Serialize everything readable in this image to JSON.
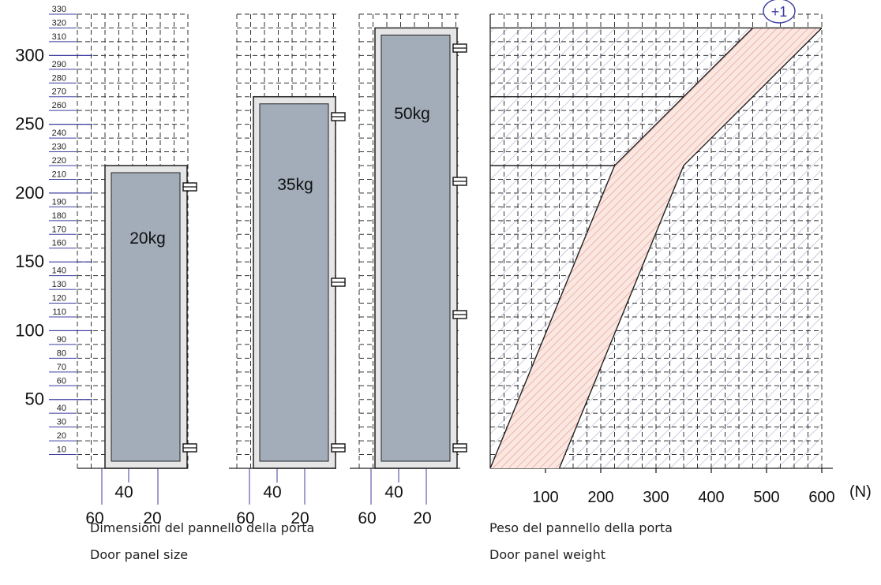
{
  "height_axis": {
    "minor_labels": [
      "10",
      "20",
      "30",
      "40",
      "60",
      "70",
      "80",
      "90",
      "110",
      "120",
      "130",
      "140",
      "160",
      "170",
      "180",
      "190",
      "210",
      "220",
      "230",
      "240",
      "260",
      "270",
      "280",
      "290",
      "310",
      "320",
      "330"
    ],
    "major_labels": [
      "50",
      "100",
      "150",
      "200",
      "250",
      "300"
    ]
  },
  "width_axis": {
    "labels": [
      "60",
      "40",
      "20"
    ]
  },
  "doors": [
    {
      "label": "20kg",
      "height": 220,
      "hinges": 2
    },
    {
      "label": "35kg",
      "height": 270,
      "hinges": 3
    },
    {
      "label": "50kg",
      "height": 320,
      "hinges": 4
    }
  ],
  "chart_data": {
    "type": "area",
    "x_unit": "(N)",
    "xticks": [
      "100",
      "200",
      "300",
      "400",
      "500",
      "600"
    ],
    "xlim": [
      0,
      600
    ],
    "ylim": [
      0,
      330
    ],
    "overflow_marker": "+1",
    "band_lower": {
      "x": [
        0,
        225,
        475
      ],
      "y": [
        0,
        220,
        320
      ]
    },
    "band_upper": {
      "x": [
        125,
        350,
        600
      ],
      "y": [
        0,
        220,
        320
      ]
    },
    "reference_lines_y": [
      220,
      270,
      320
    ]
  },
  "captions": {
    "size_it": "Dimensioni del pannello della porta",
    "size_en": "Door panel size",
    "weight_it": "Peso del pannello della porta",
    "weight_en": "Door panel weight"
  },
  "colors": {
    "axis_blue": "#3c3ca0",
    "door_fill": "#a2adb9",
    "frame_fill": "#e6e6e6",
    "band_hatch": "#e8a090",
    "band_fill": "#fbe7e1",
    "hatch_blue": "#5f6a9b"
  }
}
